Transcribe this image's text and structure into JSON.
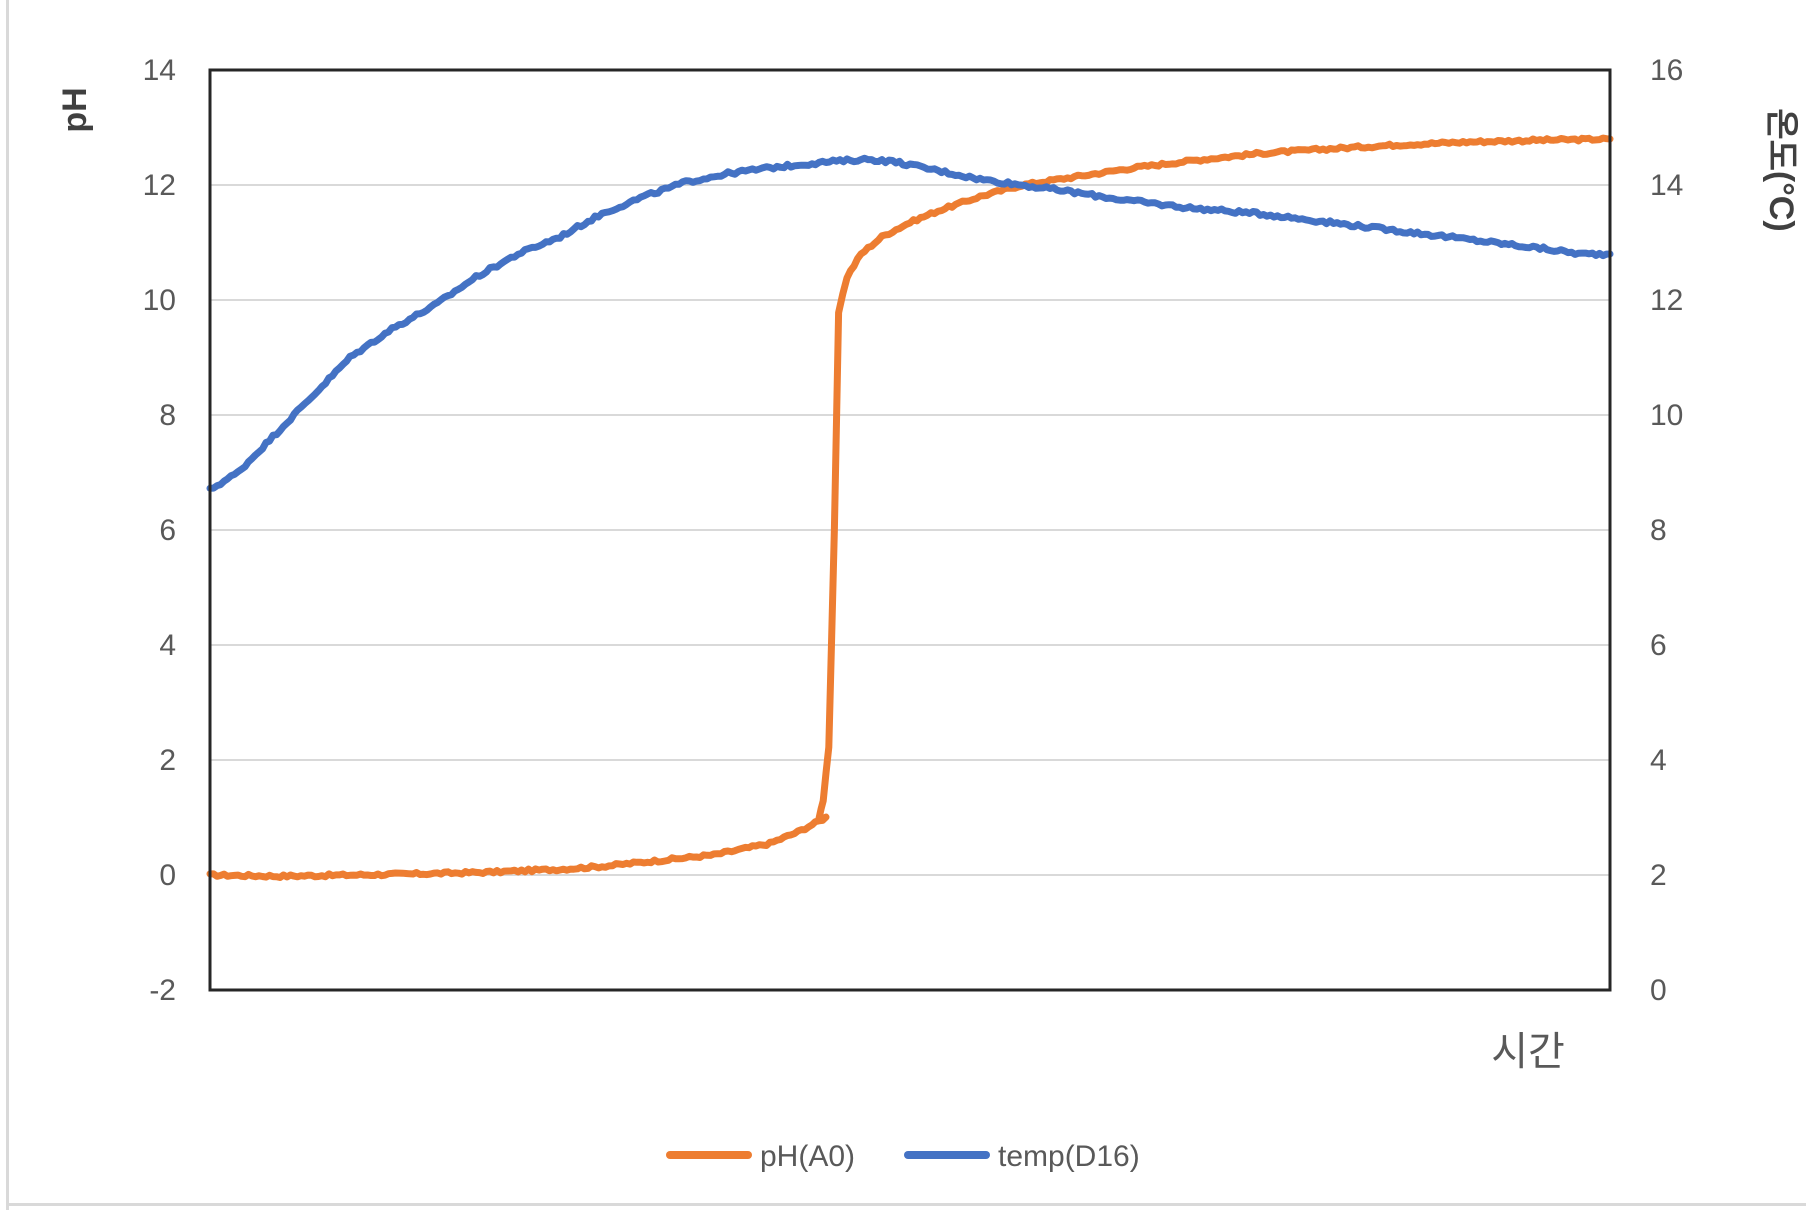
{
  "chart_data": {
    "type": "line",
    "xlabel": "시간",
    "ylabel": "pH",
    "y2label": "온도(°C)",
    "ylim": [
      -2,
      14
    ],
    "y2lim": [
      0,
      16
    ],
    "yticks": [
      "-2",
      "0",
      "2",
      "4",
      "6",
      "8",
      "10",
      "12",
      "14"
    ],
    "y2ticks": [
      "0",
      "2",
      "4",
      "6",
      "8",
      "10",
      "12",
      "14",
      "16"
    ],
    "xlim": [
      0,
      100
    ],
    "grid": true,
    "legend_position": "bottom",
    "series": [
      {
        "name": "pH(A0)",
        "axis": "left",
        "color": "#ed7d31",
        "points": [
          [
            0,
            0.0
          ],
          [
            5,
            -0.02
          ],
          [
            10,
            0.0
          ],
          [
            15,
            0.02
          ],
          [
            20,
            0.05
          ],
          [
            25,
            0.1
          ],
          [
            28,
            0.15
          ],
          [
            32,
            0.25
          ],
          [
            36,
            0.35
          ],
          [
            40,
            0.55
          ],
          [
            42,
            0.75
          ],
          [
            44,
            1.0
          ],
          [
            43.5,
            1.0
          ],
          [
            43.8,
            1.3
          ],
          [
            44.2,
            2.2
          ],
          [
            44.6,
            6.0
          ],
          [
            44.9,
            9.8
          ],
          [
            45.5,
            10.4
          ],
          [
            46.5,
            10.8
          ],
          [
            48,
            11.1
          ],
          [
            50,
            11.35
          ],
          [
            52,
            11.55
          ],
          [
            55,
            11.8
          ],
          [
            58,
            12.0
          ],
          [
            62,
            12.15
          ],
          [
            66,
            12.3
          ],
          [
            70,
            12.42
          ],
          [
            75,
            12.55
          ],
          [
            80,
            12.63
          ],
          [
            85,
            12.7
          ],
          [
            90,
            12.75
          ],
          [
            95,
            12.78
          ],
          [
            100,
            12.8
          ]
        ]
      },
      {
        "name": "temp(D16)",
        "axis": "right",
        "color": "#4472c4",
        "points": [
          [
            0,
            8.7
          ],
          [
            2,
            9.0
          ],
          [
            4,
            9.5
          ],
          [
            6,
            10.0
          ],
          [
            8,
            10.5
          ],
          [
            10,
            11.0
          ],
          [
            13,
            11.5
          ],
          [
            16,
            11.9
          ],
          [
            19,
            12.4
          ],
          [
            22,
            12.8
          ],
          [
            25,
            13.1
          ],
          [
            28,
            13.5
          ],
          [
            31,
            13.8
          ],
          [
            34,
            14.05
          ],
          [
            37,
            14.2
          ],
          [
            40,
            14.3
          ],
          [
            44,
            14.4
          ],
          [
            47,
            14.45
          ],
          [
            49,
            14.4
          ],
          [
            52,
            14.25
          ],
          [
            55,
            14.1
          ],
          [
            58,
            14.0
          ],
          [
            61,
            13.9
          ],
          [
            65,
            13.75
          ],
          [
            70,
            13.6
          ],
          [
            75,
            13.5
          ],
          [
            80,
            13.35
          ],
          [
            85,
            13.2
          ],
          [
            90,
            13.05
          ],
          [
            95,
            12.9
          ],
          [
            98,
            12.8
          ],
          [
            100,
            12.8
          ]
        ]
      }
    ]
  }
}
